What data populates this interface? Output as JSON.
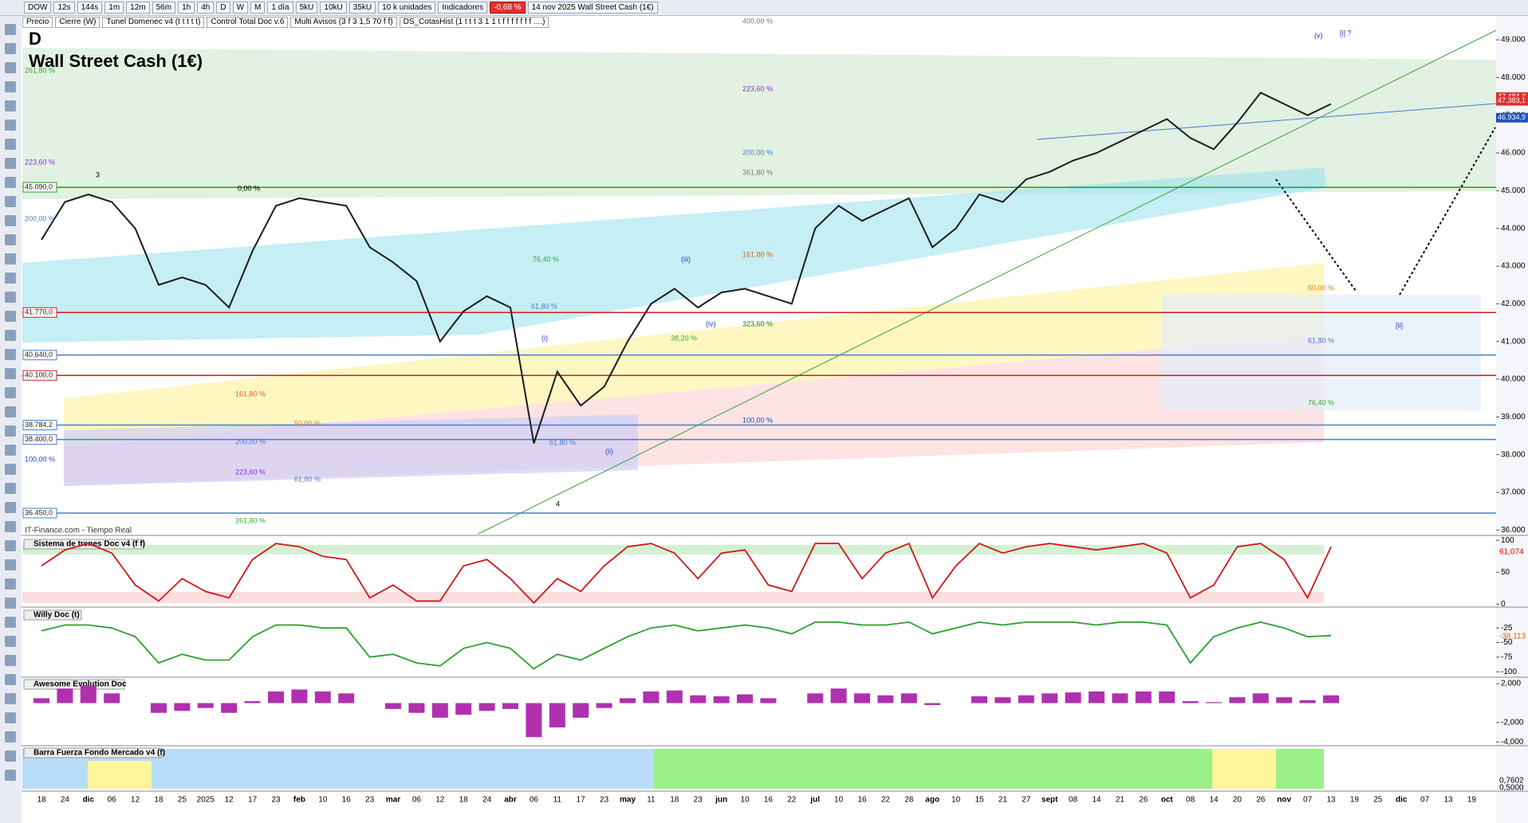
{
  "toolbar": {
    "symbol": "DOW",
    "intervals": [
      "12s",
      "144s",
      "1m",
      "12m",
      "56m",
      "1h",
      "4h",
      "D",
      "W",
      "M"
    ],
    "period": "1 día",
    "units": [
      "5kU",
      "10kU",
      "35kU"
    ],
    "unit_select": "10 k unidades",
    "indicators": "Indicadores",
    "change": "-0,68 %",
    "info": "14 nov 2025 Wall Street Cash (1€)"
  },
  "studies": [
    "Precio",
    "Cierre (W)",
    "Tunel Domenec v4 (t t t t t)",
    "Control Total Doc v.6",
    "Multi Avisos (3 f 3 1,5 70 f f)",
    "DS_CotasHist (1 t t t 3 1 1 t f f f f f f f ....)"
  ],
  "source": "IT-Finance.com - Tiempo Real",
  "annotations": [
    "400,00 %",
    "223,60 %",
    "261,80 %",
    "223,60 %",
    "200,00 %",
    "200,00 %",
    "361,80 %",
    "76,40 %",
    "161,80 %",
    "61,80 %",
    "323,60 %",
    "38,20 %",
    "161,80 %",
    "50,00 %",
    "100,00 %",
    "200,00 %",
    "61,80 %",
    "223,60 %",
    "61,80 %",
    "261,80 %",
    "100,00 %",
    "50,00 %",
    "61,80 %",
    "76,40 %",
    "(v)",
    "[i] ?",
    "(iii)",
    "(iv)",
    "(i)",
    "(ii)",
    "[ii]",
    "3",
    "4",
    "0,00 %"
  ],
  "side_tags": [
    "61,074",
    "-38,113",
    "0,7602",
    "0,5000"
  ],
  "chart_data": [
    {
      "type": "line",
      "timeframe": "D",
      "title": "Wall Street Cash (1€)",
      "color": "#1b1b1b",
      "categories": [
        "18",
        "24",
        "dic",
        "06",
        "12",
        "18",
        "25",
        "2025",
        "12",
        "17",
        "23",
        "feb",
        "10",
        "16",
        "23",
        "mar",
        "06",
        "12",
        "18",
        "24",
        "abr",
        "06",
        "11",
        "17",
        "23",
        "may",
        "11",
        "18",
        "23",
        "jun",
        "10",
        "16",
        "22",
        "jul",
        "10",
        "16",
        "22",
        "28",
        "ago",
        "10",
        "15",
        "21",
        "27",
        "sept",
        "08",
        "14",
        "21",
        "26",
        "oct",
        "08",
        "14",
        "20",
        "26",
        "nov",
        "07",
        "13",
        "19",
        "25",
        "dic",
        "07",
        "13",
        "19"
      ],
      "values": [
        43700,
        44700,
        44900,
        44700,
        44000,
        42500,
        42700,
        42500,
        41900,
        43400,
        44600,
        44800,
        44700,
        44600,
        43500,
        43100,
        42600,
        41000,
        41800,
        42200,
        41900,
        38300,
        40200,
        39300,
        39800,
        41000,
        42000,
        42400,
        41900,
        42300,
        42400,
        42200,
        42000,
        44000,
        44600,
        44200,
        44500,
        44800,
        43500,
        44000,
        44900,
        44700,
        45300,
        45500,
        45800,
        46000,
        46300,
        46600,
        46900,
        46400,
        46100,
        46800,
        47600,
        47300,
        47000,
        47300,
        null,
        null,
        null,
        null,
        null,
        null
      ],
      "ylim": [
        35900,
        49550
      ],
      "yticks": [
        {
          "value": 49000,
          "label": "49.000"
        },
        {
          "value": 48000,
          "label": "48.000"
        },
        {
          "value": 47000,
          "label": "47.000"
        },
        {
          "value": 46000,
          "label": "46.000"
        },
        {
          "value": 45000,
          "label": "45.000"
        },
        {
          "value": 44000,
          "label": "44.000"
        },
        {
          "value": 43000,
          "label": "43.000"
        },
        {
          "value": 42000,
          "label": "42.000"
        },
        {
          "value": 41000,
          "label": "41.000"
        },
        {
          "value": 40000,
          "label": "40.000"
        },
        {
          "value": 39000,
          "label": "39.000"
        },
        {
          "value": 38000,
          "label": "38.000"
        },
        {
          "value": 37000,
          "label": "37.000"
        },
        {
          "value": 36000,
          "label": "36.000"
        }
      ],
      "levels": [
        {
          "value": 45090,
          "label": "45.090,0",
          "color": "#1f9e1f"
        },
        {
          "value": 41770,
          "label": "41.770,0",
          "color": "#d11c1c"
        },
        {
          "value": 40640,
          "label": "40.640,0",
          "color": "#4a7bd1"
        },
        {
          "value": 40100,
          "label": "40.100,0",
          "color": "#d11c1c"
        },
        {
          "value": 38784.2,
          "label": "38.784,2",
          "color": "#4a7bd1"
        },
        {
          "value": 38400,
          "label": "38.400,0",
          "color": "#4a7bd1"
        },
        {
          "value": 36450,
          "label": "36.450,0",
          "color": "#4a7bd1"
        }
      ],
      "price_tags": [
        {
          "value": 47484.3,
          "label": "47.484,3",
          "color": "#e03030"
        },
        {
          "value": 47383.1,
          "label": "47.383,1",
          "color": "#e03030"
        },
        {
          "value": 46934.9,
          "label": "46.934,9",
          "color": "#2050c0"
        }
      ]
    },
    {
      "type": "line",
      "title": "Sistema de trenes Doc v4 (f f)",
      "color": "#d01818",
      "values": [
        60,
        85,
        95,
        80,
        30,
        5,
        40,
        20,
        10,
        70,
        95,
        90,
        75,
        70,
        10,
        30,
        5,
        5,
        60,
        70,
        40,
        2,
        40,
        20,
        60,
        90,
        95,
        80,
        40,
        80,
        85,
        30,
        20,
        95,
        95,
        40,
        80,
        95,
        10,
        60,
        95,
        80,
        90,
        95,
        90,
        85,
        90,
        95,
        80,
        10,
        30,
        90,
        95,
        70,
        10,
        90,
        null,
        null,
        null,
        null,
        null,
        null
      ],
      "ylim": [
        -2,
        104
      ],
      "yticks": [
        100,
        50,
        0
      ]
    },
    {
      "type": "line",
      "title": "Willy Doc (t)",
      "color": "#2ca02c",
      "values": [
        -30,
        -20,
        -20,
        -25,
        -40,
        -85,
        -70,
        -80,
        -80,
        -40,
        -20,
        -20,
        -25,
        -25,
        -75,
        -70,
        -85,
        -90,
        -60,
        -50,
        -60,
        -95,
        -70,
        -80,
        -60,
        -40,
        -25,
        -20,
        -30,
        -25,
        -20,
        -25,
        -35,
        -15,
        -15,
        -20,
        -20,
        -15,
        -35,
        -25,
        -15,
        -20,
        -15,
        -15,
        -15,
        -20,
        -15,
        -15,
        -20,
        -85,
        -40,
        -25,
        -15,
        -25,
        -40,
        -38,
        null,
        null,
        null,
        null,
        null,
        null
      ],
      "ylim": [
        -108,
        8
      ],
      "yticks": [
        -25,
        -50,
        -75,
        -100
      ]
    },
    {
      "type": "bar",
      "title": "Awesome Evolution Doc",
      "color": "#b030b0",
      "values": [
        0.5,
        1.5,
        1.8,
        1.0,
        0,
        -1,
        -0.8,
        -0.5,
        -1,
        0.2,
        1.2,
        1.4,
        1.2,
        1,
        0,
        -0.6,
        -1,
        -1.5,
        -1.2,
        -0.8,
        -0.6,
        -3.5,
        -2.5,
        -1.5,
        -0.5,
        0.5,
        1.2,
        1.3,
        0.8,
        0.7,
        0.9,
        0.5,
        0,
        1.0,
        1.5,
        1.0,
        0.8,
        1.0,
        -0.2,
        0,
        0.7,
        0.6,
        0.8,
        1.0,
        1.1,
        1.2,
        1.0,
        1.2,
        1.2,
        0.2,
        0.1,
        0.6,
        1.0,
        0.6,
        0.3,
        0.8,
        null,
        null,
        null,
        null,
        null,
        null
      ],
      "ylim": [
        -4.3,
        2.5
      ],
      "yticks": [
        {
          "value": 2,
          "label": "2,000"
        },
        {
          "value": -2,
          "label": "-2,000"
        },
        {
          "value": -4,
          "label": "-4,000"
        }
      ]
    }
  ],
  "panel_title": "Barra Fuerza Fondo Mercado v4 (f)"
}
